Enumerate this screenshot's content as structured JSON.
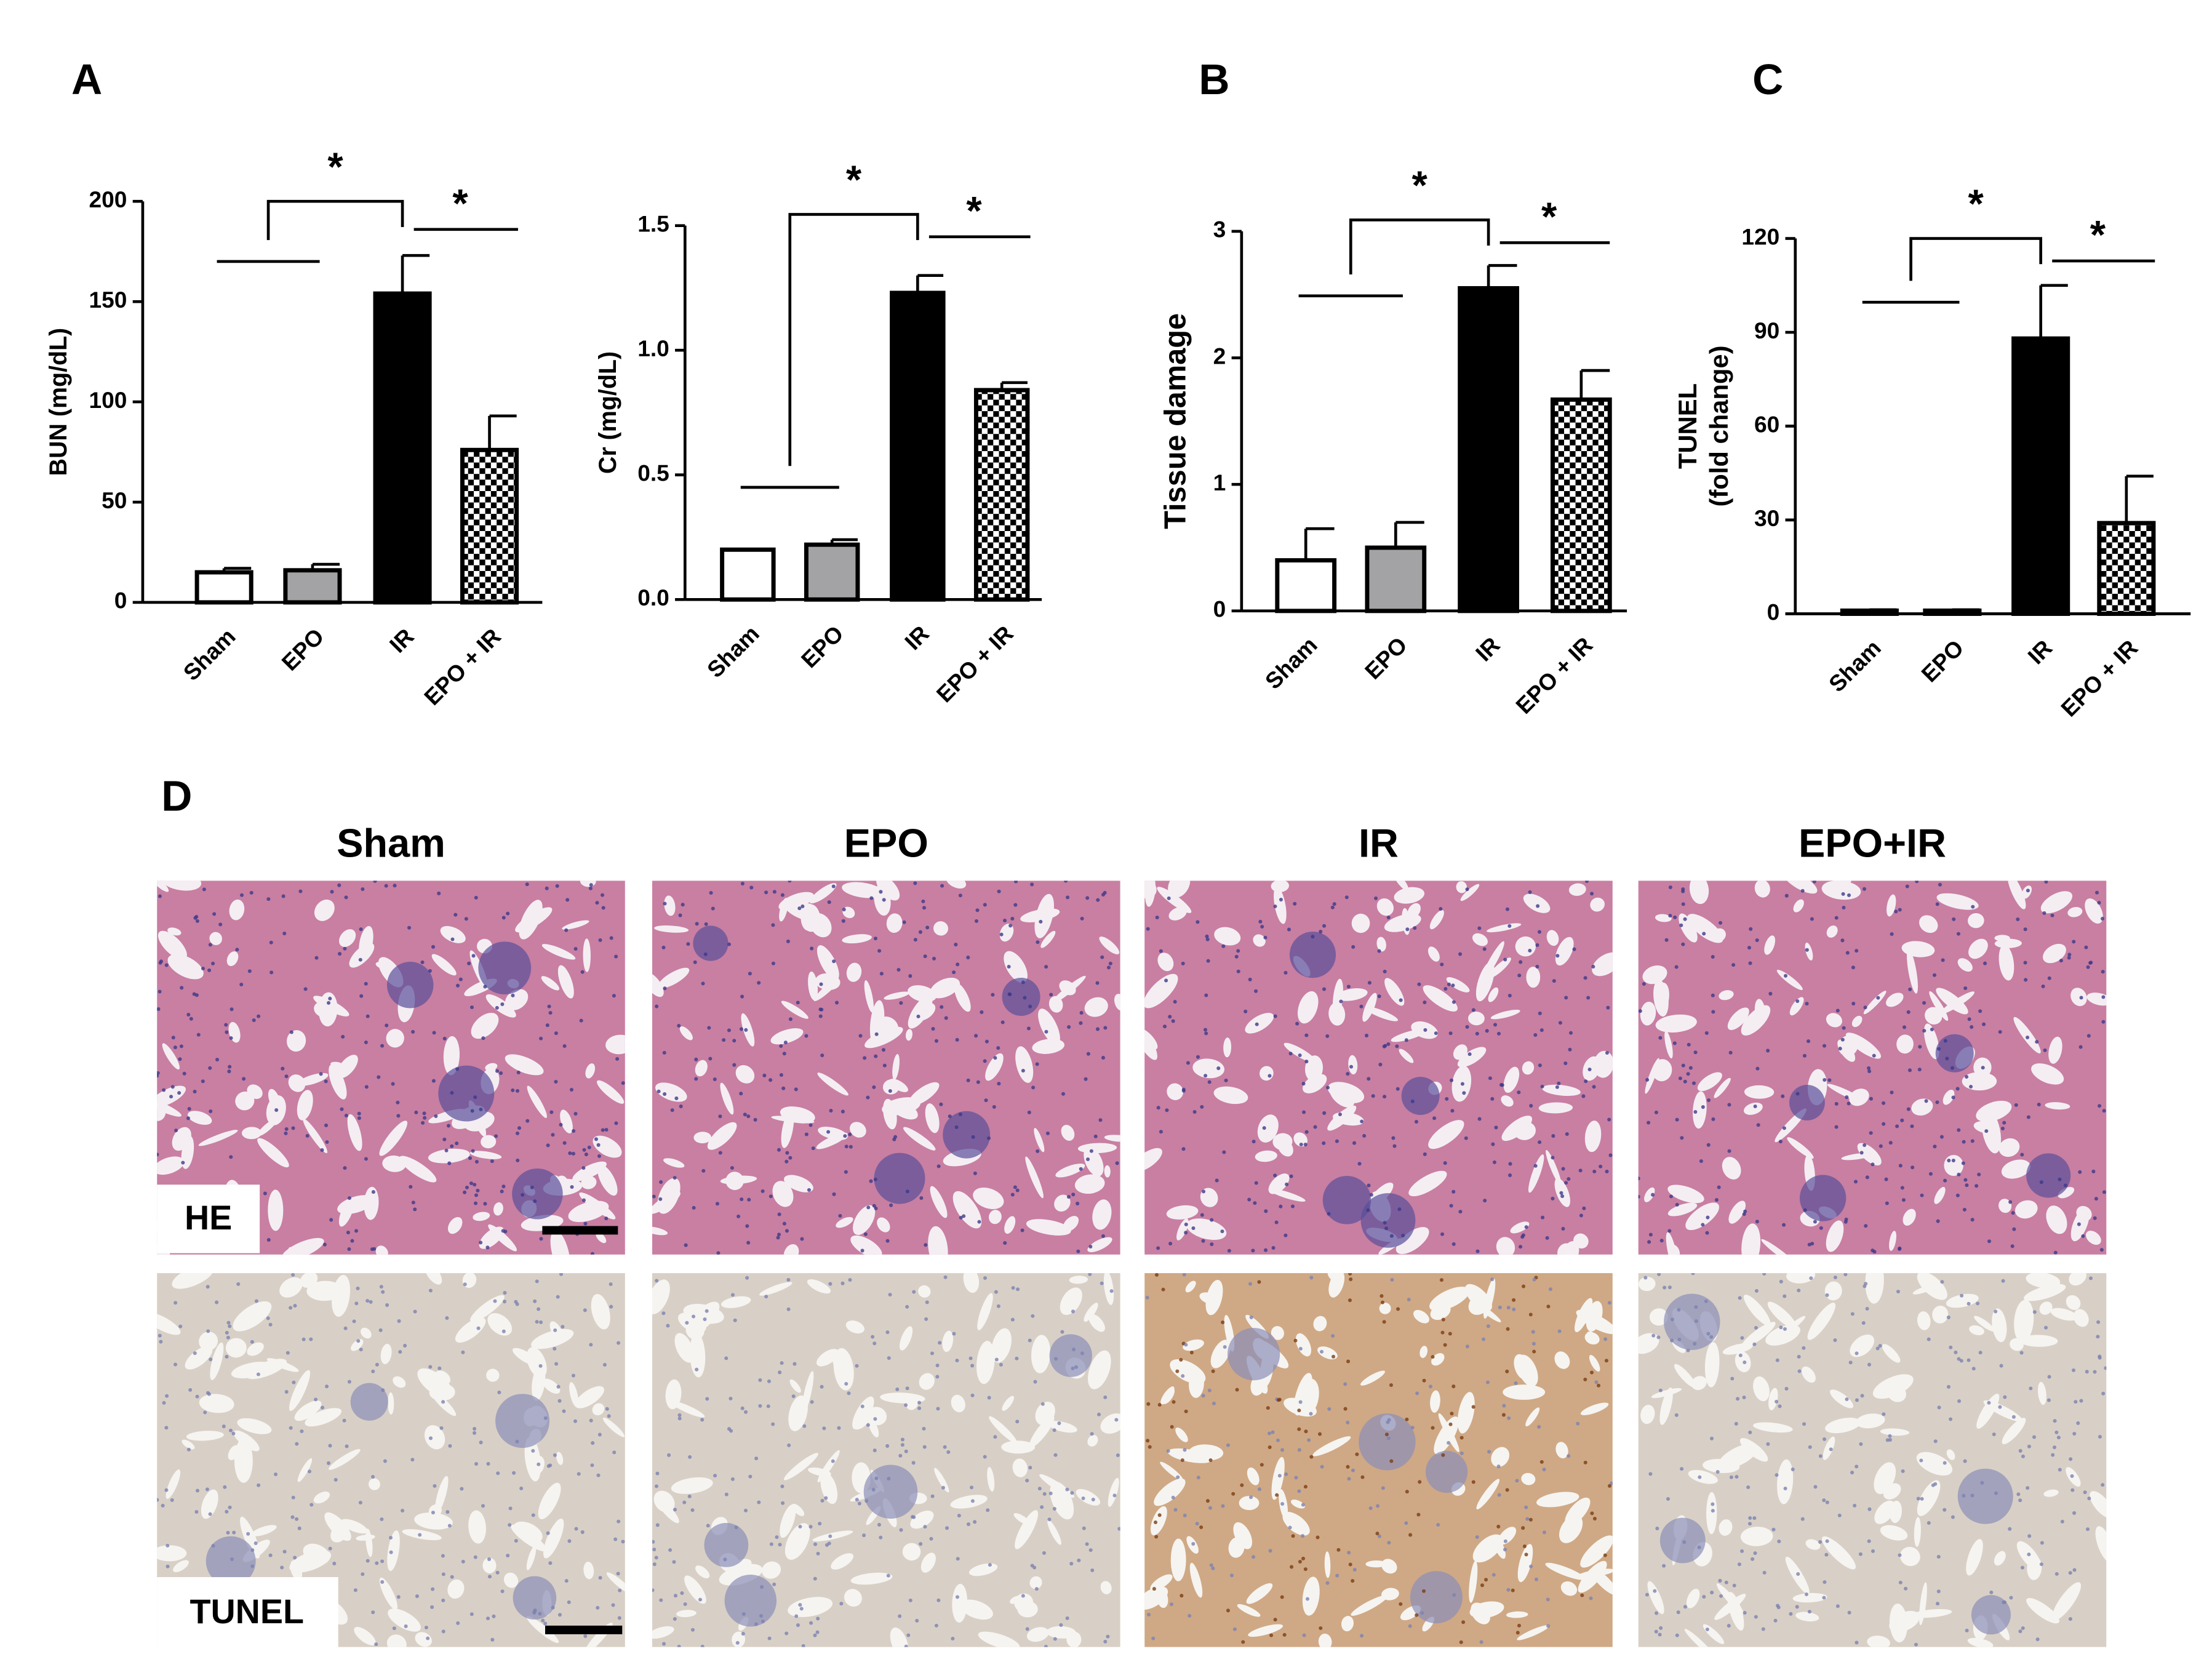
{
  "chart_data": [
    {
      "type": "bar",
      "panel": "A",
      "y_label": [
        "BUN (mg/dL)"
      ],
      "categories": [
        "Sham",
        "EPO",
        "IR",
        "EPO + IR"
      ],
      "values": [
        15,
        16,
        154,
        76
      ],
      "errors": [
        2,
        3,
        19,
        17
      ],
      "bar_fills": [
        "#ffffff",
        "#a3a3a5",
        "#000000",
        "checkerboard"
      ],
      "ylim": [
        0,
        200
      ],
      "yticks": [
        0,
        50,
        100,
        150,
        200
      ],
      "annotations": [
        "*",
        "*"
      ]
    },
    {
      "type": "bar",
      "y_label": [
        "Cr (mg/dL)"
      ],
      "categories": [
        "Sham",
        "EPO",
        "IR",
        "EPO + IR"
      ],
      "values": [
        0.2,
        0.22,
        1.23,
        0.84
      ],
      "errors": [
        0,
        0.02,
        0.07,
        0.03
      ],
      "bar_fills": [
        "#ffffff",
        "#a3a3a5",
        "#000000",
        "checkerboard"
      ],
      "ylim": [
        0,
        1.5
      ],
      "yticks": [
        {
          "value": 0,
          "label": "0.0"
        },
        0.5,
        {
          "value": 1,
          "label": "1.0"
        },
        1.5
      ],
      "annotations": [
        "*",
        "*"
      ]
    },
    {
      "type": "bar",
      "panel": "B",
      "y_label": [
        "Tissue damage"
      ],
      "categories": [
        "Sham",
        "EPO",
        "IR",
        "EPO + IR"
      ],
      "values": [
        0.4,
        0.5,
        2.55,
        1.67
      ],
      "errors": [
        0.25,
        0.2,
        0.18,
        0.23
      ],
      "bar_fills": [
        "#ffffff",
        "#a3a3a5",
        "#000000",
        "checkerboard"
      ],
      "ylim": [
        0,
        3
      ],
      "yticks": [
        0,
        1,
        2,
        3
      ],
      "annotations": [
        "*",
        "*"
      ]
    },
    {
      "type": "bar",
      "panel": "C",
      "y_label": [
        "TUNEL",
        "(fold change)"
      ],
      "categories": [
        "Sham",
        "EPO",
        "IR",
        "EPO + IR"
      ],
      "values": [
        1,
        1,
        88,
        29
      ],
      "errors": [
        0.3,
        0.3,
        17,
        15
      ],
      "bar_fills": [
        "#ffffff",
        "#a3a3a5",
        "#000000",
        "checkerboard"
      ],
      "ylim": [
        0,
        120
      ],
      "yticks": [
        0,
        30,
        60,
        90,
        120
      ],
      "annotations": [
        "*",
        "*"
      ]
    }
  ],
  "panel_d": {
    "label": "D",
    "columns": [
      "Sham",
      "EPO",
      "IR",
      "EPO+IR"
    ],
    "rows": [
      "HE",
      "TUNEL"
    ]
  }
}
